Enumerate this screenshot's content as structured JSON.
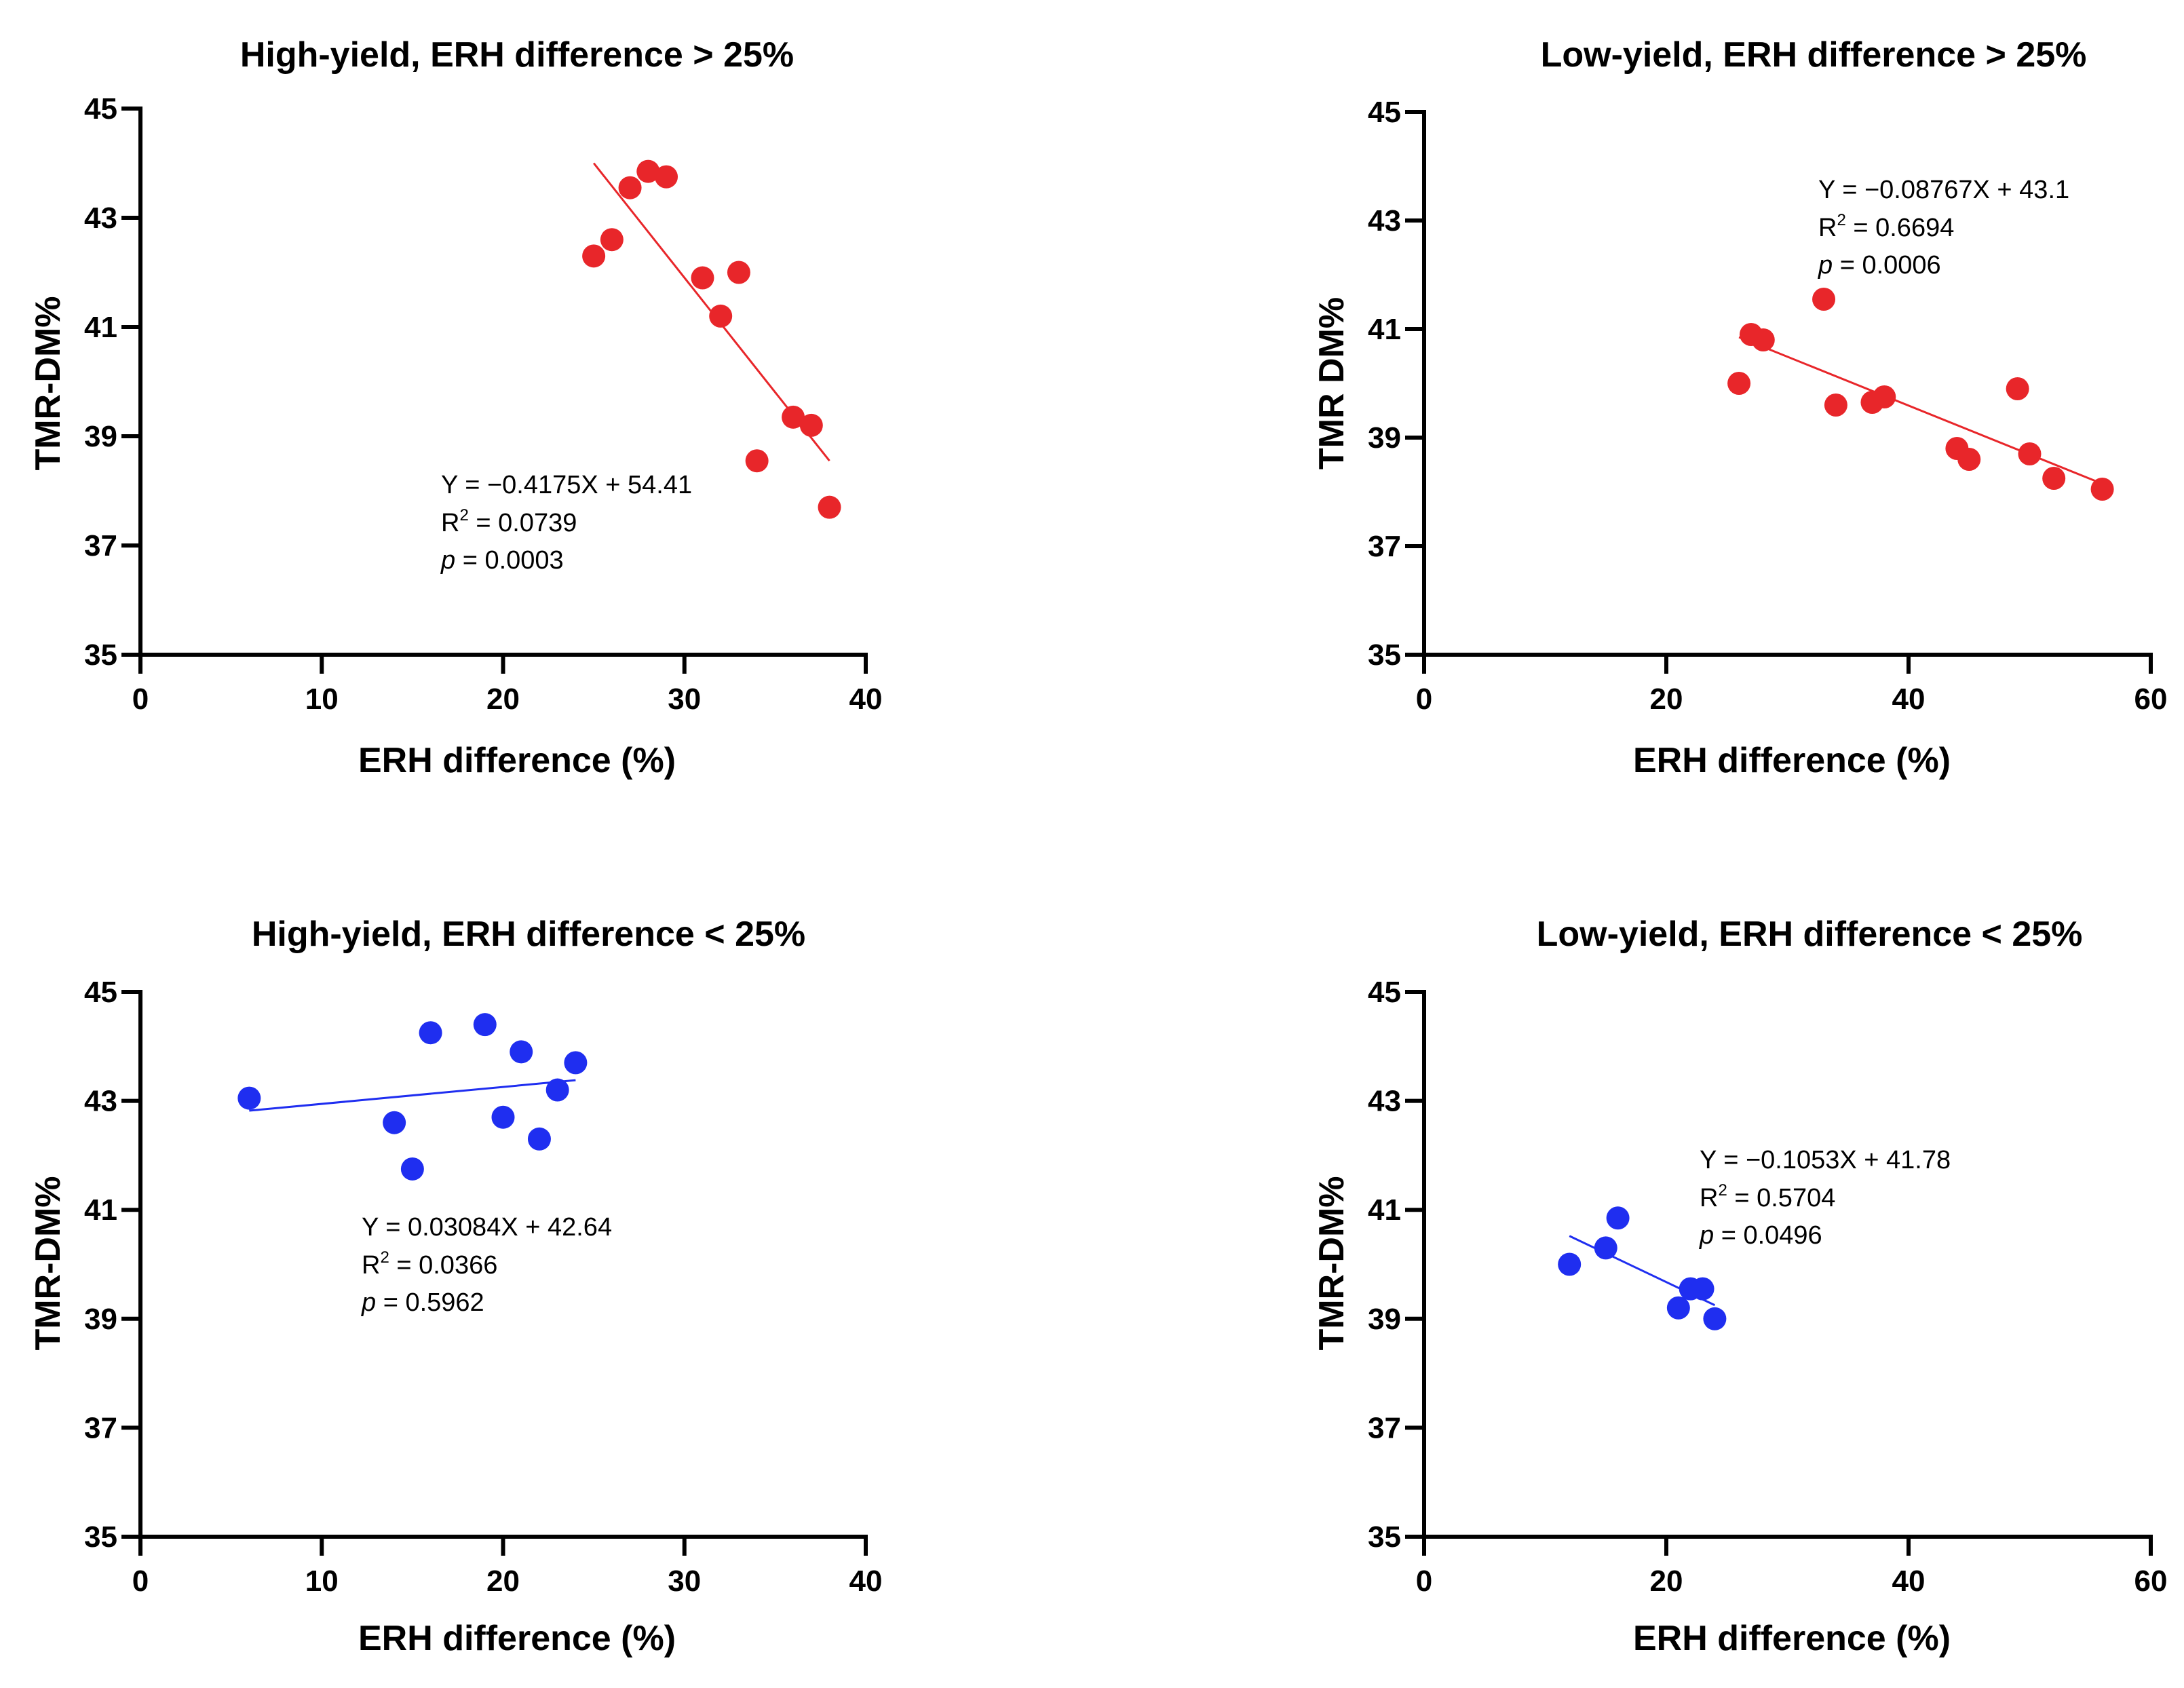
{
  "chart_data": [
    {
      "type": "scatter",
      "title": "High-yield, ERH difference > 25%",
      "xlabel": "ERH difference (%)",
      "ylabel": "TMR-DM%",
      "xlim": [
        0,
        40
      ],
      "ylim": [
        35,
        45
      ],
      "xticks": [
        "0",
        "10",
        "20",
        "30",
        "40"
      ],
      "yticks": [
        "35",
        "37",
        "39",
        "41",
        "43",
        "45"
      ],
      "color": "#e8262a",
      "points": [
        {
          "x": 25,
          "y": 42.3
        },
        {
          "x": 26,
          "y": 42.6
        },
        {
          "x": 27,
          "y": 43.55
        },
        {
          "x": 28,
          "y": 43.85
        },
        {
          "x": 29,
          "y": 43.75
        },
        {
          "x": 31,
          "y": 41.9
        },
        {
          "x": 32,
          "y": 41.2
        },
        {
          "x": 33,
          "y": 42.0
        },
        {
          "x": 34,
          "y": 38.55
        },
        {
          "x": 36,
          "y": 39.35
        },
        {
          "x": 37,
          "y": 39.2
        },
        {
          "x": 38,
          "y": 37.7
        }
      ],
      "fit_line": {
        "x_start": 25,
        "y_start": 44.0,
        "x_end": 38,
        "y_end": 38.55
      },
      "annotation": {
        "equation": "Y = −0.4175X + 54.41",
        "r2_label": "R",
        "r2_sup": "2",
        "r2_value": " = 0.0739",
        "p_label": "p",
        "p_value": " = 0.0003"
      }
    },
    {
      "type": "scatter",
      "title": "Low-yield, ERH difference > 25%",
      "xlabel": "ERH difference (%)",
      "ylabel": "TMR DM%",
      "xlim": [
        0,
        60
      ],
      "ylim": [
        35,
        45
      ],
      "xticks": [
        "0",
        "20",
        "40",
        "60"
      ],
      "yticks": [
        "35",
        "37",
        "39",
        "41",
        "43",
        "45"
      ],
      "color": "#e8262a",
      "points": [
        {
          "x": 26,
          "y": 40.0
        },
        {
          "x": 27,
          "y": 40.9
        },
        {
          "x": 28,
          "y": 40.8
        },
        {
          "x": 33,
          "y": 41.55
        },
        {
          "x": 34,
          "y": 39.6
        },
        {
          "x": 37,
          "y": 39.65
        },
        {
          "x": 38,
          "y": 39.75
        },
        {
          "x": 44,
          "y": 38.8
        },
        {
          "x": 45,
          "y": 38.6
        },
        {
          "x": 49,
          "y": 39.9
        },
        {
          "x": 50,
          "y": 38.7
        },
        {
          "x": 52,
          "y": 38.25
        },
        {
          "x": 56,
          "y": 38.05
        }
      ],
      "fit_line": {
        "x_start": 26,
        "y_start": 40.85,
        "x_end": 56,
        "y_end": 38.15
      },
      "annotation": {
        "equation": "Y = −0.08767X + 43.1",
        "r2_label": "R",
        "r2_sup": "2",
        "r2_value": " = 0.6694",
        "p_label": "p",
        "p_value": " = 0.0006"
      }
    },
    {
      "type": "scatter",
      "title": "High-yield, ERH difference < 25%",
      "xlabel": "ERH difference (%)",
      "ylabel": "TMR-DM%",
      "xlim": [
        0,
        40
      ],
      "ylim": [
        35,
        45
      ],
      "xticks": [
        "0",
        "10",
        "20",
        "30",
        "40"
      ],
      "yticks": [
        "35",
        "37",
        "39",
        "41",
        "43",
        "45"
      ],
      "color": "#1f2ef0",
      "points": [
        {
          "x": 6,
          "y": 43.05
        },
        {
          "x": 14,
          "y": 42.6
        },
        {
          "x": 15,
          "y": 41.75
        },
        {
          "x": 16,
          "y": 44.25
        },
        {
          "x": 19,
          "y": 44.4
        },
        {
          "x": 20,
          "y": 42.7
        },
        {
          "x": 21,
          "y": 43.9
        },
        {
          "x": 22,
          "y": 42.3
        },
        {
          "x": 23,
          "y": 43.2
        },
        {
          "x": 24,
          "y": 43.7
        }
      ],
      "fit_line": {
        "x_start": 6,
        "y_start": 42.82,
        "x_end": 24,
        "y_end": 43.38
      },
      "annotation": {
        "equation": "Y = 0.03084X + 42.64",
        "r2_label": "R",
        "r2_sup": "2",
        "r2_value": " = 0.0366",
        "p_label": "p",
        "p_value": " = 0.5962"
      }
    },
    {
      "type": "scatter",
      "title": "Low-yield, ERH difference < 25%",
      "xlabel": "ERH difference (%)",
      "ylabel": "TMR-DM%",
      "xlim": [
        0,
        60
      ],
      "ylim": [
        35,
        45
      ],
      "xticks": [
        "0",
        "20",
        "40",
        "60"
      ],
      "yticks": [
        "35",
        "37",
        "39",
        "41",
        "43",
        "45"
      ],
      "color": "#1f2ef0",
      "points": [
        {
          "x": 12,
          "y": 40.0
        },
        {
          "x": 15,
          "y": 40.3
        },
        {
          "x": 16,
          "y": 40.85
        },
        {
          "x": 21,
          "y": 39.2
        },
        {
          "x": 22,
          "y": 39.55
        },
        {
          "x": 23,
          "y": 39.55
        },
        {
          "x": 24,
          "y": 39.0
        }
      ],
      "fit_line": {
        "x_start": 12,
        "y_start": 40.52,
        "x_end": 24,
        "y_end": 39.25
      },
      "annotation": {
        "equation": "Y = −0.1053X + 41.78",
        "r2_label": "R",
        "r2_sup": "2",
        "r2_value": " = 0.5704",
        "p_label": "p",
        "p_value": " = 0.0496"
      }
    }
  ]
}
